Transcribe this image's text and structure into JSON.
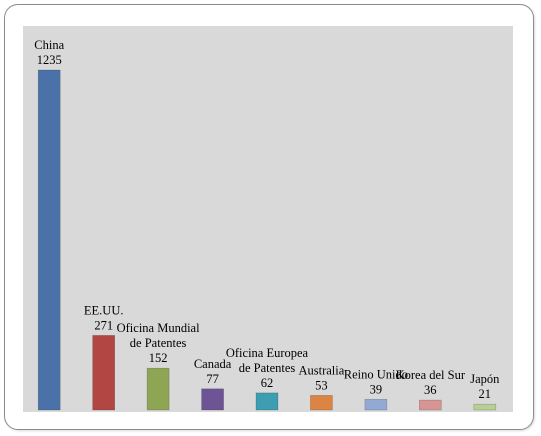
{
  "chart_data": {
    "type": "bar",
    "title": "",
    "xlabel": "",
    "ylabel": "",
    "ylim": [
      0,
      1300
    ],
    "grid": false,
    "legend": "none",
    "background": "#d9d9d9",
    "categories": [
      [
        "China"
      ],
      [
        "EE.UU."
      ],
      [
        "Oficina Mundial",
        "de Patentes"
      ],
      [
        "Canada"
      ],
      [
        "Oficina Europea",
        "de Patentes"
      ],
      [
        "Australia"
      ],
      [
        "Reino Unido"
      ],
      [
        "Korea del Sur"
      ],
      [
        "Japón"
      ]
    ],
    "values": [
      1235,
      271,
      152,
      77,
      62,
      53,
      39,
      36,
      21
    ],
    "colors": [
      "#4a72a8",
      "#b24642",
      "#8ea553",
      "#6e5494",
      "#3e9db0",
      "#dc8443",
      "#92a9d4",
      "#d69493",
      "#b7cf93"
    ]
  }
}
